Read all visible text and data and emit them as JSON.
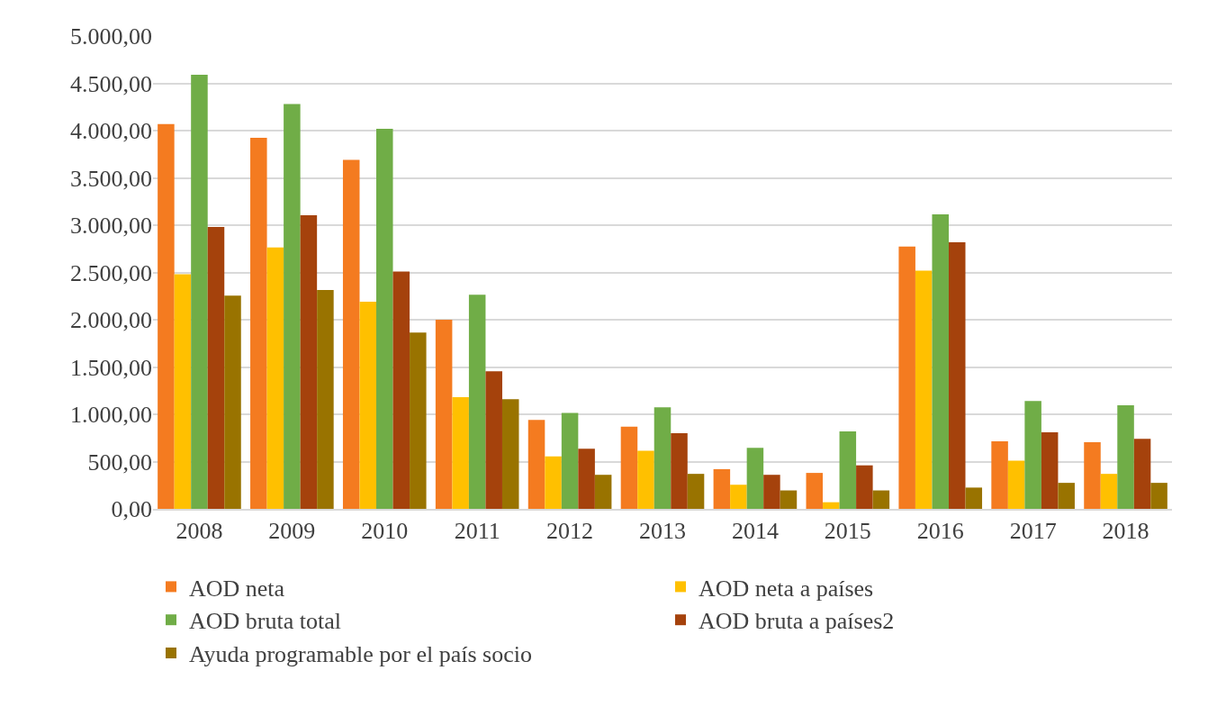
{
  "chart_data": {
    "type": "bar",
    "categories": [
      "2008",
      "2009",
      "2010",
      "2011",
      "2012",
      "2013",
      "2014",
      "2015",
      "2016",
      "2017",
      "2018"
    ],
    "series": [
      {
        "name": "AOD neta",
        "color": "#f47b20",
        "values": [
          4070,
          3925,
          3690,
          2000,
          940,
          870,
          420,
          380,
          2775,
          715,
          705
        ]
      },
      {
        "name": "AOD neta a países",
        "color": "#ffc000",
        "values": [
          2480,
          2765,
          2190,
          1180,
          555,
          615,
          255,
          70,
          2520,
          510,
          370
        ]
      },
      {
        "name": "AOD bruta total",
        "color": "#70ad47",
        "values": [
          4590,
          4280,
          4020,
          2265,
          1015,
          1075,
          645,
          820,
          3115,
          1140,
          1095
        ]
      },
      {
        "name": "AOD bruta a países2",
        "color": "#a5420c",
        "values": [
          2980,
          3105,
          2510,
          1455,
          635,
          800,
          360,
          460,
          2820,
          810,
          740
        ]
      },
      {
        "name": "Ayuda programable por el país socio",
        "color": "#997300",
        "values": [
          2255,
          2315,
          1865,
          1160,
          360,
          370,
          195,
          195,
          225,
          275,
          275
        ]
      }
    ],
    "ylim": [
      0,
      5000
    ],
    "yticks": [
      {
        "value": 0,
        "label": "0,00"
      },
      {
        "value": 500,
        "label": "500,00"
      },
      {
        "value": 1000,
        "label": "1.000,00"
      },
      {
        "value": 1500,
        "label": "1.500,00"
      },
      {
        "value": 2000,
        "label": "2.000,00"
      },
      {
        "value": 2500,
        "label": "2.500,00"
      },
      {
        "value": 3000,
        "label": "3.000,00"
      },
      {
        "value": 3500,
        "label": "3.500,00"
      },
      {
        "value": 4000,
        "label": "4.000,00"
      },
      {
        "value": 4500,
        "label": "4.500,00"
      },
      {
        "value": 5000,
        "label": "5.000,00"
      }
    ],
    "grid": "y",
    "legend": "bottom"
  }
}
